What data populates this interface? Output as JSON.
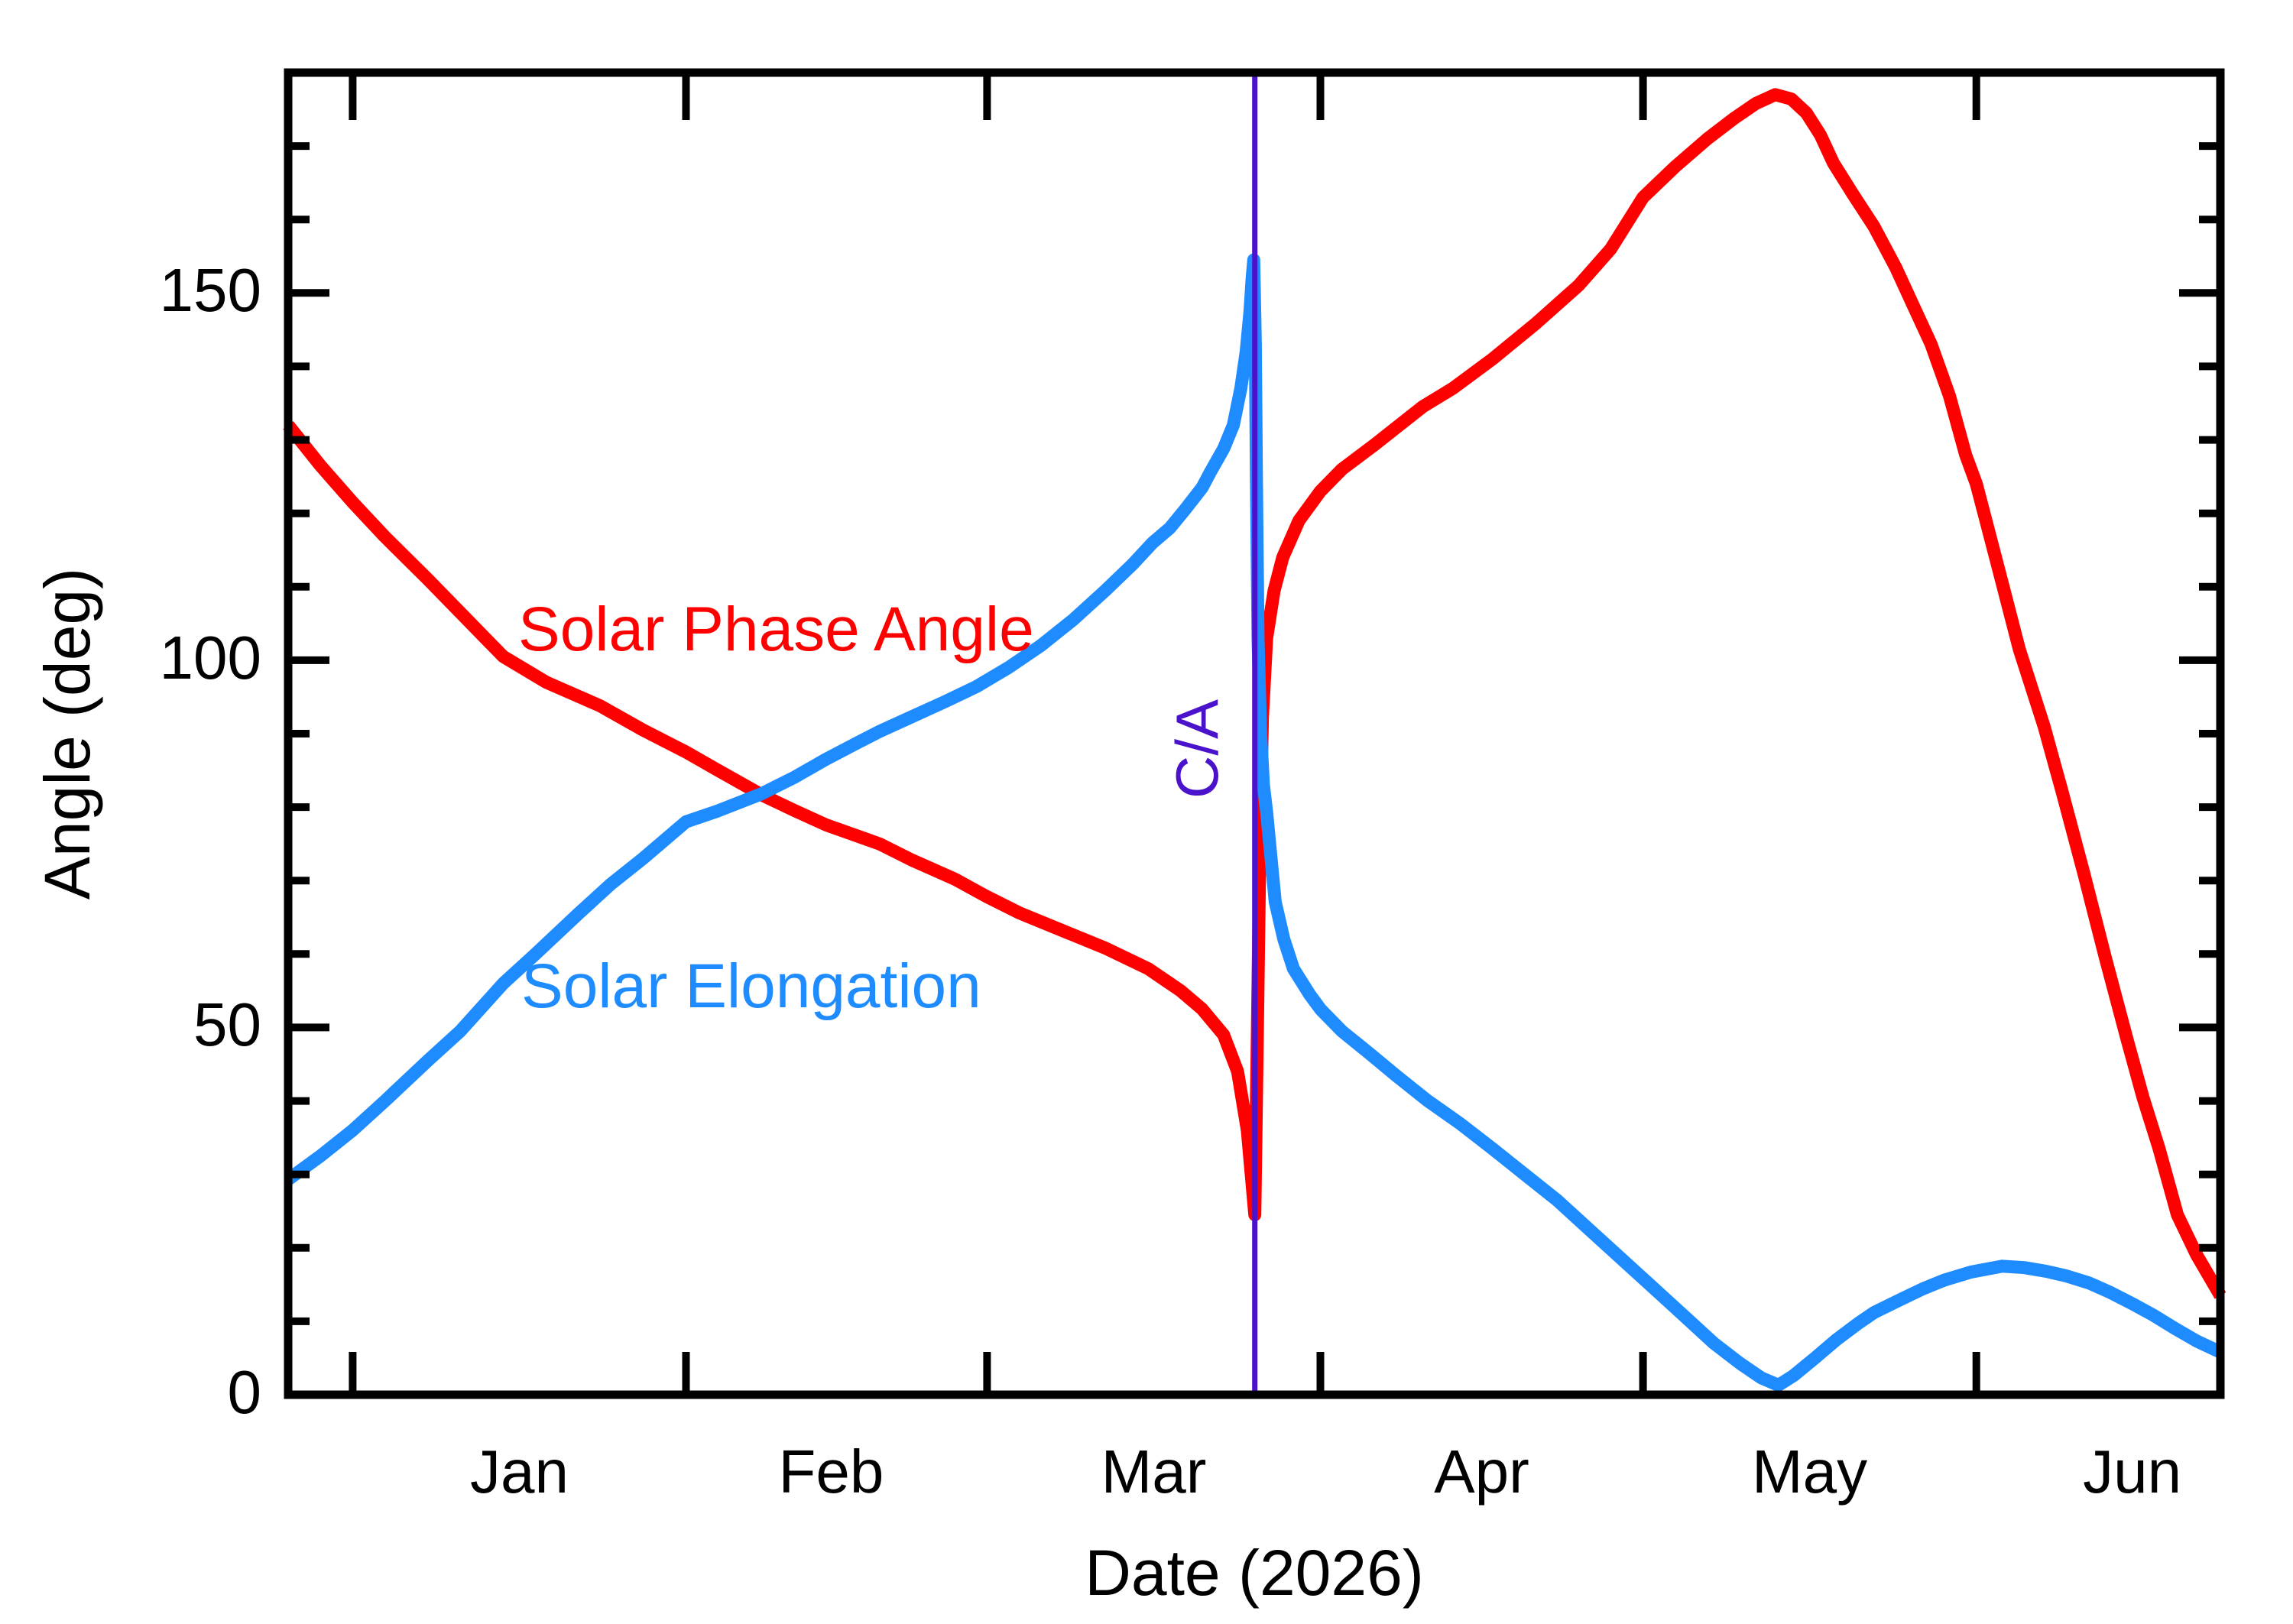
{
  "page": {
    "background": "#ffffff"
  },
  "chart_data": {
    "type": "line",
    "title": "",
    "xlabel": "Date (2026)",
    "ylabel": "Angle (deg)",
    "legend_position": "inline-curve-labels",
    "grid": false,
    "x_range_days_from_jan1": [
      -6,
      173.7
    ],
    "y_range_deg": [
      0,
      180
    ],
    "x_axis": {
      "month_tick_days": [
        0,
        31,
        59,
        90,
        120,
        151
      ],
      "month_labels": [
        "Jan",
        "Feb",
        "Mar",
        "Apr",
        "May",
        "Jun"
      ],
      "month_label_days": [
        15.5,
        44.5,
        74.5,
        105,
        135.5,
        165.5
      ]
    },
    "y_axis": {
      "major_ticks": [
        0,
        50,
        100,
        150
      ],
      "minor_ticks": [
        10,
        20,
        30,
        40,
        60,
        70,
        80,
        90,
        110,
        120,
        130,
        140,
        160,
        170
      ]
    },
    "series": [
      {
        "id": "phase",
        "name": "Solar Phase Angle",
        "color": "#ff0000",
        "points": [
          [
            -6,
            132
          ],
          [
            -3,
            126.5
          ],
          [
            0,
            121.5
          ],
          [
            3,
            116.8
          ],
          [
            7,
            111
          ],
          [
            10,
            106.5
          ],
          [
            14,
            100.5
          ],
          [
            18,
            97
          ],
          [
            23,
            93.8
          ],
          [
            27,
            90.5
          ],
          [
            31,
            87.5
          ],
          [
            34,
            85
          ],
          [
            38,
            81.7
          ],
          [
            41,
            79.6
          ],
          [
            44,
            77.6
          ],
          [
            49,
            75
          ],
          [
            52,
            72.8
          ],
          [
            56,
            70.2
          ],
          [
            59,
            67.8
          ],
          [
            62,
            65.6
          ],
          [
            66,
            63.2
          ],
          [
            70,
            60.8
          ],
          [
            74,
            58
          ],
          [
            77,
            55
          ],
          [
            79,
            52.5
          ],
          [
            81,
            49
          ],
          [
            82.3,
            44
          ],
          [
            83.2,
            36
          ],
          [
            83.9,
            24.5
          ],
          [
            84.1,
            45
          ],
          [
            84.35,
            72
          ],
          [
            84.6,
            92
          ],
          [
            85,
            103
          ],
          [
            85.7,
            109.5
          ],
          [
            86.5,
            114
          ],
          [
            88,
            119
          ],
          [
            90,
            123
          ],
          [
            92,
            126
          ],
          [
            95,
            129.3
          ],
          [
            99.5,
            134.5
          ],
          [
            102.3,
            137
          ],
          [
            106,
            141
          ],
          [
            110,
            145.8
          ],
          [
            114,
            151
          ],
          [
            117,
            156
          ],
          [
            120,
            163
          ],
          [
            123,
            167.2
          ],
          [
            126,
            171
          ],
          [
            128.5,
            173.8
          ],
          [
            130.5,
            175.8
          ],
          [
            132.3,
            177
          ],
          [
            133.8,
            176.4
          ],
          [
            135.2,
            174.5
          ],
          [
            136.5,
            171.5
          ],
          [
            137.7,
            167.7
          ],
          [
            139.5,
            163.5
          ],
          [
            141.5,
            159
          ],
          [
            143.5,
            153.5
          ],
          [
            145,
            148.7
          ],
          [
            146.8,
            143
          ],
          [
            148.5,
            136
          ],
          [
            150,
            128
          ],
          [
            151,
            124
          ],
          [
            151.9,
            119
          ],
          [
            153.5,
            110
          ],
          [
            155,
            101.5
          ],
          [
            157.3,
            91
          ],
          [
            159,
            82
          ],
          [
            161,
            71
          ],
          [
            163,
            59.5
          ],
          [
            165,
            48.5
          ],
          [
            166.5,
            40.5
          ],
          [
            168,
            33.5
          ],
          [
            169.7,
            24.5
          ],
          [
            171.5,
            19
          ],
          [
            173.7,
            13.5
          ]
        ]
      },
      {
        "id": "elong",
        "name": "Solar Elongation",
        "color": "#1e8cff",
        "points": [
          [
            -6,
            29.3
          ],
          [
            -3,
            32.5
          ],
          [
            0,
            36
          ],
          [
            3,
            40
          ],
          [
            7,
            45.5
          ],
          [
            10,
            49.5
          ],
          [
            14,
            56
          ],
          [
            17,
            60
          ],
          [
            21,
            65.5
          ],
          [
            24,
            69.5
          ],
          [
            27,
            73
          ],
          [
            31,
            78
          ],
          [
            34,
            79.5
          ],
          [
            38,
            81.8
          ],
          [
            41,
            84
          ],
          [
            44,
            86.5
          ],
          [
            47,
            88.8
          ],
          [
            49,
            90.3
          ],
          [
            52,
            92.3
          ],
          [
            55,
            94.3
          ],
          [
            58,
            96.4
          ],
          [
            61,
            99
          ],
          [
            64,
            102
          ],
          [
            67,
            105.5
          ],
          [
            70,
            109.5
          ],
          [
            72.5,
            113
          ],
          [
            74.4,
            116
          ],
          [
            76,
            118
          ],
          [
            77.4,
            120.5
          ],
          [
            79,
            123.5
          ],
          [
            79.8,
            125.7
          ],
          [
            81,
            128.8
          ],
          [
            81.9,
            132
          ],
          [
            82.6,
            137
          ],
          [
            83.1,
            142
          ],
          [
            83.45,
            147.5
          ],
          [
            83.65,
            152
          ],
          [
            83.8,
            154.5
          ],
          [
            83.95,
            143
          ],
          [
            84.05,
            125
          ],
          [
            84.2,
            103
          ],
          [
            84.45,
            90
          ],
          [
            84.7,
            83
          ],
          [
            85,
            79.3
          ],
          [
            85.8,
            67.1
          ],
          [
            86.6,
            62
          ],
          [
            87.5,
            58
          ],
          [
            89,
            54.5
          ],
          [
            90,
            52.5
          ],
          [
            92,
            49.5
          ],
          [
            94.7,
            46.3
          ],
          [
            97,
            43.5
          ],
          [
            100,
            40
          ],
          [
            103,
            36.9
          ],
          [
            106,
            33.5
          ],
          [
            109,
            30
          ],
          [
            112,
            26.5
          ],
          [
            115,
            22.5
          ],
          [
            118,
            18.5
          ],
          [
            121,
            14.5
          ],
          [
            124,
            10.5
          ],
          [
            126.6,
            7
          ],
          [
            129,
            4.3
          ],
          [
            131,
            2.3
          ],
          [
            132.6,
            1.3
          ],
          [
            134,
            2.6
          ],
          [
            136,
            5
          ],
          [
            138,
            7.5
          ],
          [
            140,
            9.7
          ],
          [
            141.5,
            11.2
          ],
          [
            144,
            13
          ],
          [
            146,
            14.4
          ],
          [
            148,
            15.6
          ],
          [
            150.5,
            16.7
          ],
          [
            153.4,
            17.5
          ],
          [
            155.5,
            17.3
          ],
          [
            157.5,
            16.8
          ],
          [
            159.3,
            16.2
          ],
          [
            161.5,
            15.2
          ],
          [
            163.5,
            13.9
          ],
          [
            165.5,
            12.4
          ],
          [
            167.5,
            10.8
          ],
          [
            169.5,
            9
          ],
          [
            171.5,
            7.3
          ],
          [
            173.7,
            5.8
          ]
        ]
      }
    ],
    "close_approach": {
      "label": "C/A",
      "day": 83.9,
      "color": "#4b12cc"
    }
  }
}
